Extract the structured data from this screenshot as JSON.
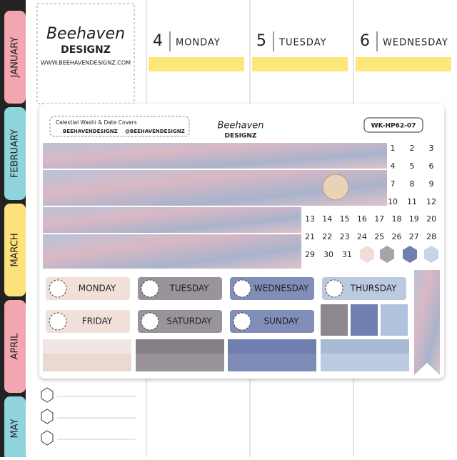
{
  "tabs": [
    "JANUARY",
    "FEBRUARY",
    "MARCH",
    "APRIL",
    "MAY"
  ],
  "logo": {
    "name": "Beehaven",
    "sub": "DESIGNZ",
    "url": "WWW.BEEHAVENDESIGNZ.COM"
  },
  "planner_days": [
    {
      "number": "4",
      "name": "MONDAY"
    },
    {
      "number": "5",
      "name": "TUESDAY"
    },
    {
      "number": "6",
      "name": "WEDNESDAY"
    }
  ],
  "sheet": {
    "title": "Celestial Washi & Date Covers",
    "website": "BEEHAVENDESIGNZ",
    "social": "@BEEHAVENDESIGNZ",
    "code": "WK-HP62-07",
    "logo": {
      "name": "Beehaven",
      "sub": "DESIGNZ"
    },
    "dates": [
      "1",
      "2",
      "3",
      "4",
      "5",
      "6",
      "7",
      "8",
      "9",
      "10",
      "11",
      "12",
      "13",
      "14",
      "15",
      "16",
      "17",
      "18",
      "19",
      "20",
      "21",
      "22",
      "23",
      "24",
      "25",
      "26",
      "27",
      "28",
      "29",
      "30",
      "31"
    ],
    "day_labels": [
      "MONDAY",
      "TUESDAY",
      "WEDNESDAY",
      "THURSDAY",
      "FRIDAY",
      "SATURDAY",
      "SUNDAY"
    ]
  }
}
